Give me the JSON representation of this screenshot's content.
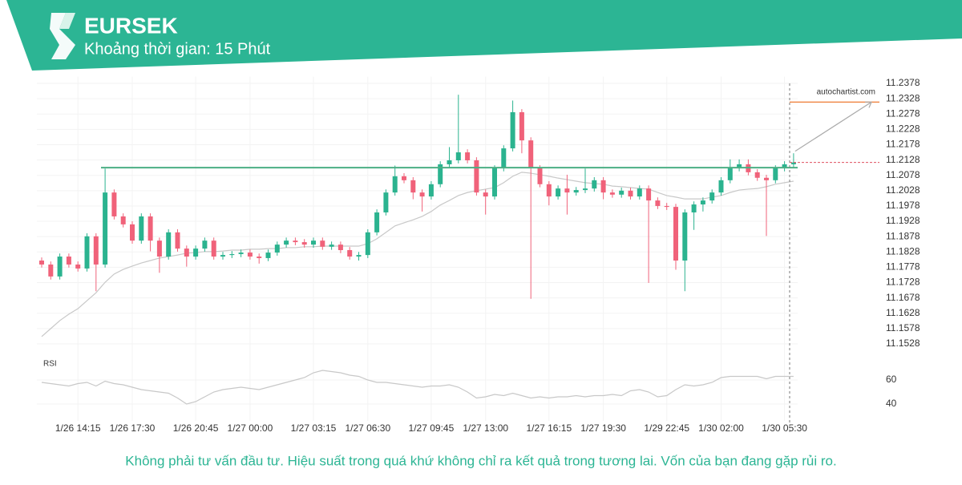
{
  "header": {
    "title": "EURSEK",
    "subtitle": "Khoảng thời gian: 15 Phút"
  },
  "footer": {
    "disclaimer": "Không phải tư vấn đầu tư. Hiệu suất trong quá khứ không chỉ ra kết quả trong tương lai. Vốn của bạn đang gặp rủi ro."
  },
  "watermark": "autochartist.com",
  "chart_data": {
    "type": "candlestick",
    "up_color": "#2bb38f",
    "down_color": "#f0627a",
    "ylim": [
      11.15,
      11.24
    ],
    "yticks": [
      11.1528,
      11.1578,
      11.1628,
      11.1678,
      11.1728,
      11.1778,
      11.1828,
      11.1878,
      11.1928,
      11.1978,
      11.2028,
      11.2078,
      11.2128,
      11.2178,
      11.2228,
      11.2278,
      11.2328,
      11.2378
    ],
    "grid": true,
    "categories": [
      null,
      null,
      null,
      null,
      "1/26 14:15",
      null,
      null,
      null,
      null,
      null,
      "1/26 17:30",
      null,
      null,
      null,
      null,
      null,
      null,
      "1/26 20:45",
      null,
      null,
      null,
      null,
      null,
      "1/27 00:00",
      null,
      null,
      null,
      null,
      null,
      null,
      "1/27 03:15",
      null,
      null,
      null,
      null,
      null,
      "1/27 06:30",
      null,
      null,
      null,
      null,
      null,
      null,
      "1/27 09:45",
      null,
      null,
      null,
      null,
      null,
      "1/27 13:00",
      null,
      null,
      null,
      null,
      null,
      null,
      "1/27 16:15",
      null,
      null,
      null,
      null,
      null,
      "1/27 19:30",
      null,
      null,
      null,
      null,
      null,
      null,
      "1/29 22:45",
      null,
      null,
      null,
      null,
      null,
      "1/30 02:00",
      null,
      null,
      null,
      null,
      null,
      null,
      "1/30 05:30",
      null
    ],
    "open": [
      11.18,
      11.1787,
      11.1748,
      11.1813,
      11.1787,
      11.1774,
      11.1879,
      11.1787,
      11.2022,
      11.1944,
      11.1918,
      11.1865,
      11.1944,
      11.1865,
      11.1813,
      11.1892,
      11.1839,
      11.1813,
      11.1839,
      11.1865,
      11.1813,
      11.1818,
      11.1821,
      11.1826,
      11.1813,
      11.1808,
      11.1826,
      11.1852,
      11.1865,
      11.186,
      11.1852,
      11.1865,
      11.1845,
      11.1852,
      11.1834,
      11.1813,
      11.1818,
      11.1892,
      11.1957,
      11.2022,
      11.2075,
      11.2062,
      11.2022,
      11.2009,
      11.2049,
      11.2114,
      11.2127,
      11.2153,
      11.2127,
      11.2022,
      11.2009,
      11.2101,
      11.2166,
      11.2284,
      11.2192,
      11.2101,
      11.2049,
      11.2009,
      11.2035,
      11.2022,
      11.203,
      11.2035,
      11.2062,
      11.2022,
      11.2015,
      11.2028,
      11.2009,
      11.2035,
      11.1996,
      11.1978,
      11.1975,
      11.18,
      11.1957,
      11.1983,
      11.1996,
      11.2022,
      11.2062,
      11.2101,
      11.2114,
      11.2088,
      11.207,
      11.2062,
      11.2101,
      11.2114
    ],
    "high": [
      11.181,
      11.1797,
      11.1823,
      11.1823,
      11.1797,
      11.1889,
      11.1889,
      11.21,
      11.2032,
      11.1954,
      11.1928,
      11.1954,
      11.1954,
      11.1875,
      11.1902,
      11.1902,
      11.1849,
      11.1849,
      11.1875,
      11.1875,
      11.1828,
      11.1831,
      11.1836,
      11.1836,
      11.1823,
      11.1836,
      11.1862,
      11.1875,
      11.1875,
      11.187,
      11.1875,
      11.1875,
      11.1862,
      11.1862,
      11.1844,
      11.1828,
      11.1902,
      11.1967,
      11.2032,
      11.211,
      11.2085,
      11.2072,
      11.2032,
      11.2059,
      11.2124,
      11.217,
      11.2341,
      11.2163,
      11.2137,
      11.2032,
      11.2111,
      11.2176,
      11.2322,
      11.2294,
      11.2202,
      11.2111,
      11.2059,
      11.2045,
      11.208,
      11.204,
      11.21,
      11.2072,
      11.2072,
      11.2032,
      11.2038,
      11.2038,
      11.2045,
      11.2045,
      11.2006,
      11.1988,
      11.1985,
      11.1967,
      11.1993,
      11.2006,
      11.2032,
      11.2072,
      11.213,
      11.213,
      11.213,
      11.2098,
      11.208,
      11.2111,
      11.2124,
      11.215
    ],
    "low": [
      11.1777,
      11.1738,
      11.1738,
      11.1777,
      11.1764,
      11.1764,
      11.17,
      11.1777,
      11.1934,
      11.1908,
      11.1855,
      11.1855,
      11.183,
      11.176,
      11.1803,
      11.1829,
      11.178,
      11.1803,
      11.1829,
      11.1803,
      11.1803,
      11.1808,
      11.1811,
      11.1803,
      11.179,
      11.1798,
      11.1816,
      11.1842,
      11.185,
      11.1842,
      11.1842,
      11.1835,
      11.1835,
      11.1824,
      11.1803,
      11.18,
      11.1808,
      11.1882,
      11.1947,
      11.2012,
      11.2052,
      11.2,
      11.196,
      11.1999,
      11.2039,
      11.2104,
      11.2117,
      11.2117,
      11.2012,
      11.195,
      11.1999,
      11.2091,
      11.2156,
      11.215,
      11.1675,
      11.2039,
      11.198,
      11.1999,
      11.195,
      11.2012,
      11.202,
      11.2025,
      11.2,
      11.2005,
      11.2005,
      11.1999,
      11.1999,
      11.1727,
      11.1968,
      11.1965,
      11.177,
      11.17,
      11.19,
      11.196,
      11.1986,
      11.2012,
      11.2052,
      11.2091,
      11.2078,
      11.206,
      11.188,
      11.2052,
      11.2091,
      11.2104
    ],
    "close": [
      11.1787,
      11.1748,
      11.1813,
      11.1787,
      11.1774,
      11.1879,
      11.1787,
      11.2022,
      11.1944,
      11.1918,
      11.1865,
      11.1944,
      11.1865,
      11.1813,
      11.1892,
      11.1839,
      11.1813,
      11.1839,
      11.1865,
      11.1813,
      11.1818,
      11.1821,
      11.1826,
      11.1813,
      11.1808,
      11.1826,
      11.1852,
      11.1865,
      11.186,
      11.1852,
      11.1865,
      11.1845,
      11.1852,
      11.1834,
      11.1813,
      11.1818,
      11.1892,
      11.1957,
      11.2022,
      11.2075,
      11.2062,
      11.2022,
      11.2009,
      11.2049,
      11.2114,
      11.2127,
      11.2153,
      11.2127,
      11.2022,
      11.2009,
      11.2101,
      11.2166,
      11.2284,
      11.2192,
      11.2101,
      11.2049,
      11.2009,
      11.2035,
      11.2022,
      11.203,
      11.2035,
      11.2062,
      11.2022,
      11.2015,
      11.2028,
      11.2009,
      11.2035,
      11.1996,
      11.1978,
      11.1975,
      11.18,
      11.1957,
      11.1983,
      11.1996,
      11.2022,
      11.2062,
      11.2101,
      11.2114,
      11.2088,
      11.207,
      11.2062,
      11.2101,
      11.2114,
      11.212
    ],
    "ma": {
      "color": "#c8c8c8",
      "values": [
        11.1552,
        11.1578,
        11.1604,
        11.1625,
        11.1643,
        11.1669,
        11.1695,
        11.1729,
        11.1756,
        11.1771,
        11.1782,
        11.1792,
        11.18,
        11.1808,
        11.1813,
        11.1818,
        11.1824,
        11.1826,
        11.1829,
        11.1829,
        11.1831,
        11.1834,
        11.1834,
        11.1837,
        11.1837,
        11.1839,
        11.1839,
        11.1842,
        11.1842,
        11.1845,
        11.1845,
        11.1847,
        11.1847,
        11.1847,
        11.1847,
        11.1847,
        11.1855,
        11.1871,
        11.1892,
        11.1913,
        11.1923,
        11.1933,
        11.1944,
        11.196,
        11.1981,
        11.1996,
        11.2012,
        11.2022,
        11.2028,
        11.2033,
        11.2038,
        11.2054,
        11.2075,
        11.2088,
        11.2085,
        11.208,
        11.2075,
        11.2069,
        11.2064,
        11.2059,
        11.2054,
        11.2051,
        11.2049,
        11.2043,
        11.2041,
        11.2038,
        11.2035,
        11.2033,
        11.2022,
        11.2012,
        11.2007,
        11.2001,
        11.2001,
        11.2001,
        11.2007,
        11.2012,
        11.2022,
        11.203,
        11.2033,
        11.2035,
        11.2041,
        11.2049,
        11.2054,
        11.2059
      ]
    },
    "levels": {
      "resistance": 11.2103,
      "resistance_color": "#4caf84",
      "target": 11.2317,
      "target_color": "#f08a4b"
    },
    "rsi": {
      "name": "RSI",
      "color": "#c8c8c8",
      "ylim": [
        30,
        80
      ],
      "yticks": [
        40,
        60
      ],
      "values": [
        58,
        57,
        56,
        55,
        57,
        58,
        55,
        59,
        57,
        56,
        54,
        52,
        51,
        50,
        49,
        45,
        40,
        42,
        46,
        50,
        52,
        53,
        54,
        53,
        52,
        54,
        56,
        58,
        60,
        62,
        66,
        68,
        67,
        66,
        64,
        63,
        60,
        58,
        58,
        57,
        56,
        55,
        54,
        55,
        55,
        56,
        54,
        50,
        45,
        46,
        48,
        47,
        49,
        47,
        45,
        46,
        45,
        46,
        46,
        47,
        46,
        47,
        47,
        48,
        47,
        51,
        52,
        50,
        46,
        47,
        52,
        56,
        55,
        56,
        58,
        62,
        63,
        63,
        63,
        63,
        61,
        63,
        63,
        63
      ]
    }
  }
}
